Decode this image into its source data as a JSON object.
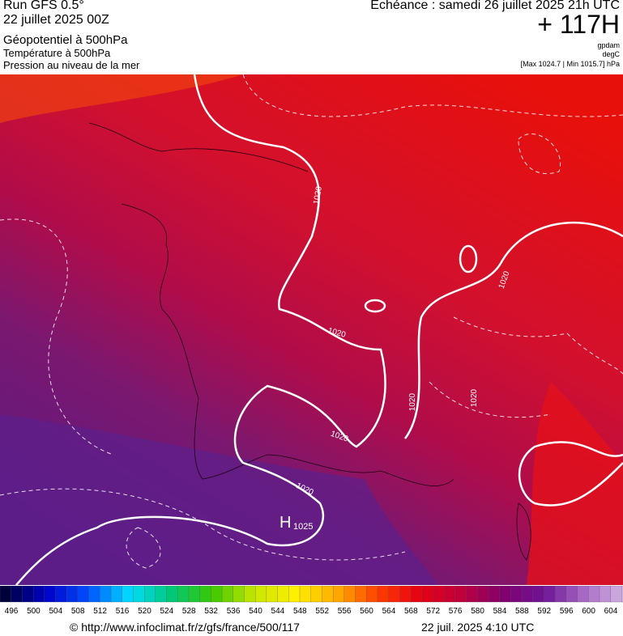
{
  "header": {
    "run": "Run GFS 0.5°",
    "date": "22 juillet 2025 00Z",
    "field1": "Géopotentiel à 500hPa",
    "field2": "Température à 500hPa",
    "field3": "Pression au niveau de la mer",
    "valid": "Echéance : samedi 26 juillet 2025 21h UTC",
    "lead": "+ 117H",
    "unit1": "gpdam",
    "unit2": "degC",
    "range": "[Max 1024.7 | Min 1015.7] hPa"
  },
  "map": {
    "contour_labels": [
      "1020",
      "1020",
      "1020",
      "1020",
      "1020",
      "1020",
      "1020"
    ],
    "high": "H",
    "high_value": "1025"
  },
  "colorbar": {
    "ticks": [
      496,
      500,
      504,
      508,
      512,
      516,
      520,
      524,
      528,
      532,
      536,
      540,
      544,
      548,
      552,
      556,
      560,
      564,
      568,
      572,
      576,
      580,
      584,
      588,
      592,
      596,
      600,
      604
    ]
  },
  "footer": {
    "url": "© http://www.infoclimat.fr/z/gfs/france/500/117",
    "stamp": "22 juil. 2025  4:10 UTC"
  }
}
